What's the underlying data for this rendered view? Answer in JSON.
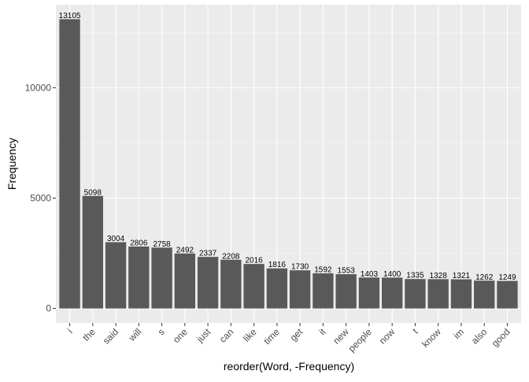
{
  "chart_data": {
    "type": "bar",
    "xlabel": "reorder(Word, -Frequency)",
    "ylabel": "Frequency",
    "categories": [
      "i",
      "the",
      "said",
      "will",
      "s",
      "one",
      "just",
      "can",
      "like",
      "time",
      "get",
      "it",
      "new",
      "people",
      "now",
      "t",
      "know",
      "im",
      "also",
      "good"
    ],
    "values": [
      13105,
      5098,
      3004,
      2806,
      2758,
      2492,
      2337,
      2208,
      2016,
      1816,
      1730,
      1592,
      1553,
      1403,
      1400,
      1335,
      1328,
      1321,
      1262,
      1249
    ],
    "y_ticks": [
      0,
      5000,
      10000
    ],
    "y_tick_labels": [
      "0",
      "5000",
      "10000"
    ],
    "ylim": [
      -655,
      13760
    ],
    "grid": true,
    "legend": "none",
    "colors": {
      "bar": "#595959",
      "panel_background": "#EBEBEB",
      "grid_major": "#FFFFFF",
      "grid_minor": "#F5F5F5",
      "axis_text": "#4D4D4D",
      "title_text": "#000000"
    }
  }
}
